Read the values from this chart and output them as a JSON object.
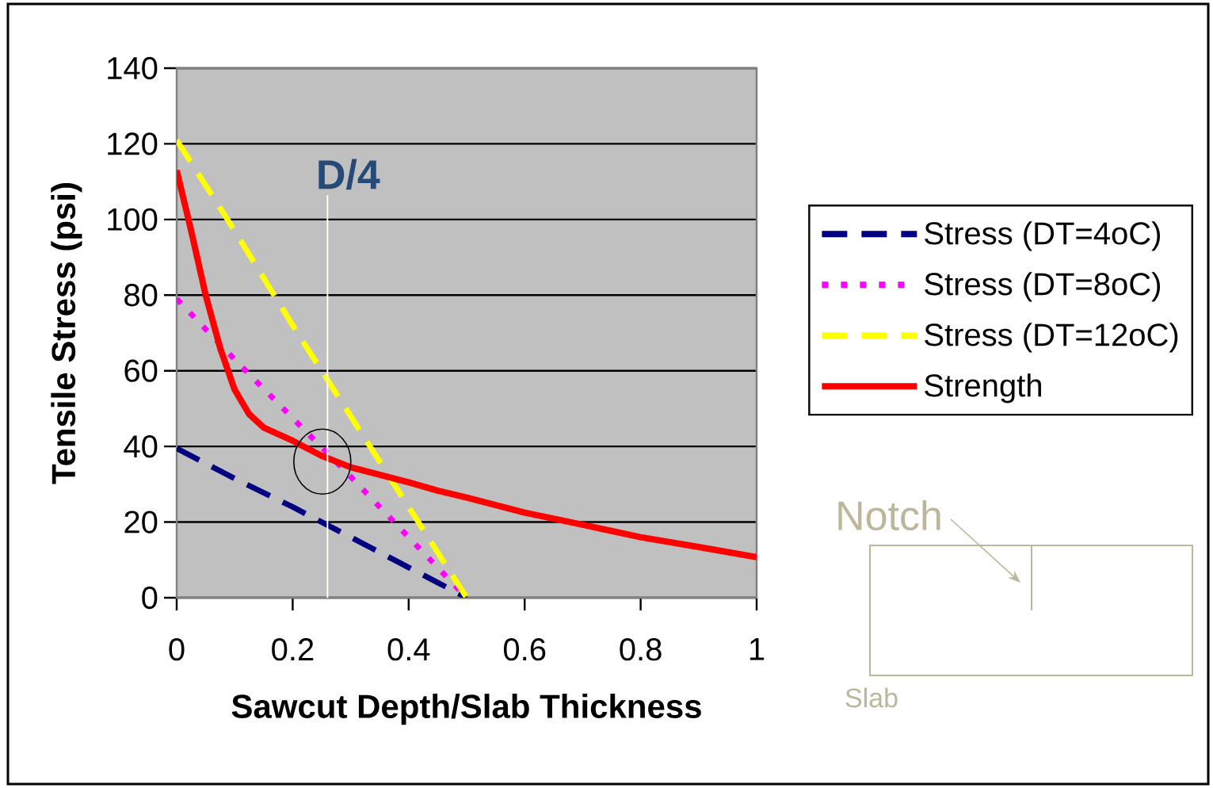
{
  "chart_data": {
    "type": "line",
    "xlabel": "Sawcut Depth/Slab Thickness",
    "ylabel": "Tensile Stress (psi)",
    "x": [
      0,
      0.1,
      0.2,
      0.3,
      0.4,
      0.45,
      0.5
    ],
    "series": [
      {
        "name": "Stress (DT=4oC)",
        "color": "#000080",
        "line_style": "dashed",
        "values": [
          39.5,
          31.5,
          24,
          16,
          8,
          4,
          0
        ]
      },
      {
        "name": "Stress (DT=8oC)",
        "color": "#ff00ff",
        "line_style": "dotted",
        "values": [
          79,
          63,
          47.5,
          32,
          16,
          8,
          0
        ]
      },
      {
        "name": "Stress (DT=12oC)",
        "color": "#ffff00",
        "line_style": "dashed",
        "values": [
          121,
          97,
          72,
          48,
          24,
          12,
          0
        ]
      },
      {
        "name": "Strength",
        "color": "#ff0000",
        "line_style": "solid",
        "x": [
          0,
          0.025,
          0.05,
          0.075,
          0.1,
          0.125,
          0.15,
          0.2,
          0.25,
          0.3,
          0.4,
          0.45,
          0.5,
          0.6,
          0.7,
          0.8,
          0.9,
          1
        ],
        "values": [
          113,
          97,
          80,
          66,
          55,
          48.5,
          45,
          41.5,
          37.5,
          34.5,
          30.5,
          28.3,
          26.5,
          22.5,
          19.3,
          16,
          13.4,
          10.7
        ]
      }
    ],
    "xlim": [
      0,
      1
    ],
    "ylim": [
      0,
      140
    ],
    "xticks": [
      0,
      0.2,
      0.4,
      0.6,
      0.8,
      1
    ],
    "yticks": [
      0,
      20,
      40,
      60,
      80,
      100,
      120,
      140
    ],
    "grid": "y",
    "legend": "right",
    "marker": "none",
    "ref_lines": [
      {
        "axis": "x",
        "value": 0.26,
        "label": "D/4",
        "color": "#fffff0"
      }
    ],
    "annotations": [
      "Notch",
      "Slab"
    ]
  }
}
